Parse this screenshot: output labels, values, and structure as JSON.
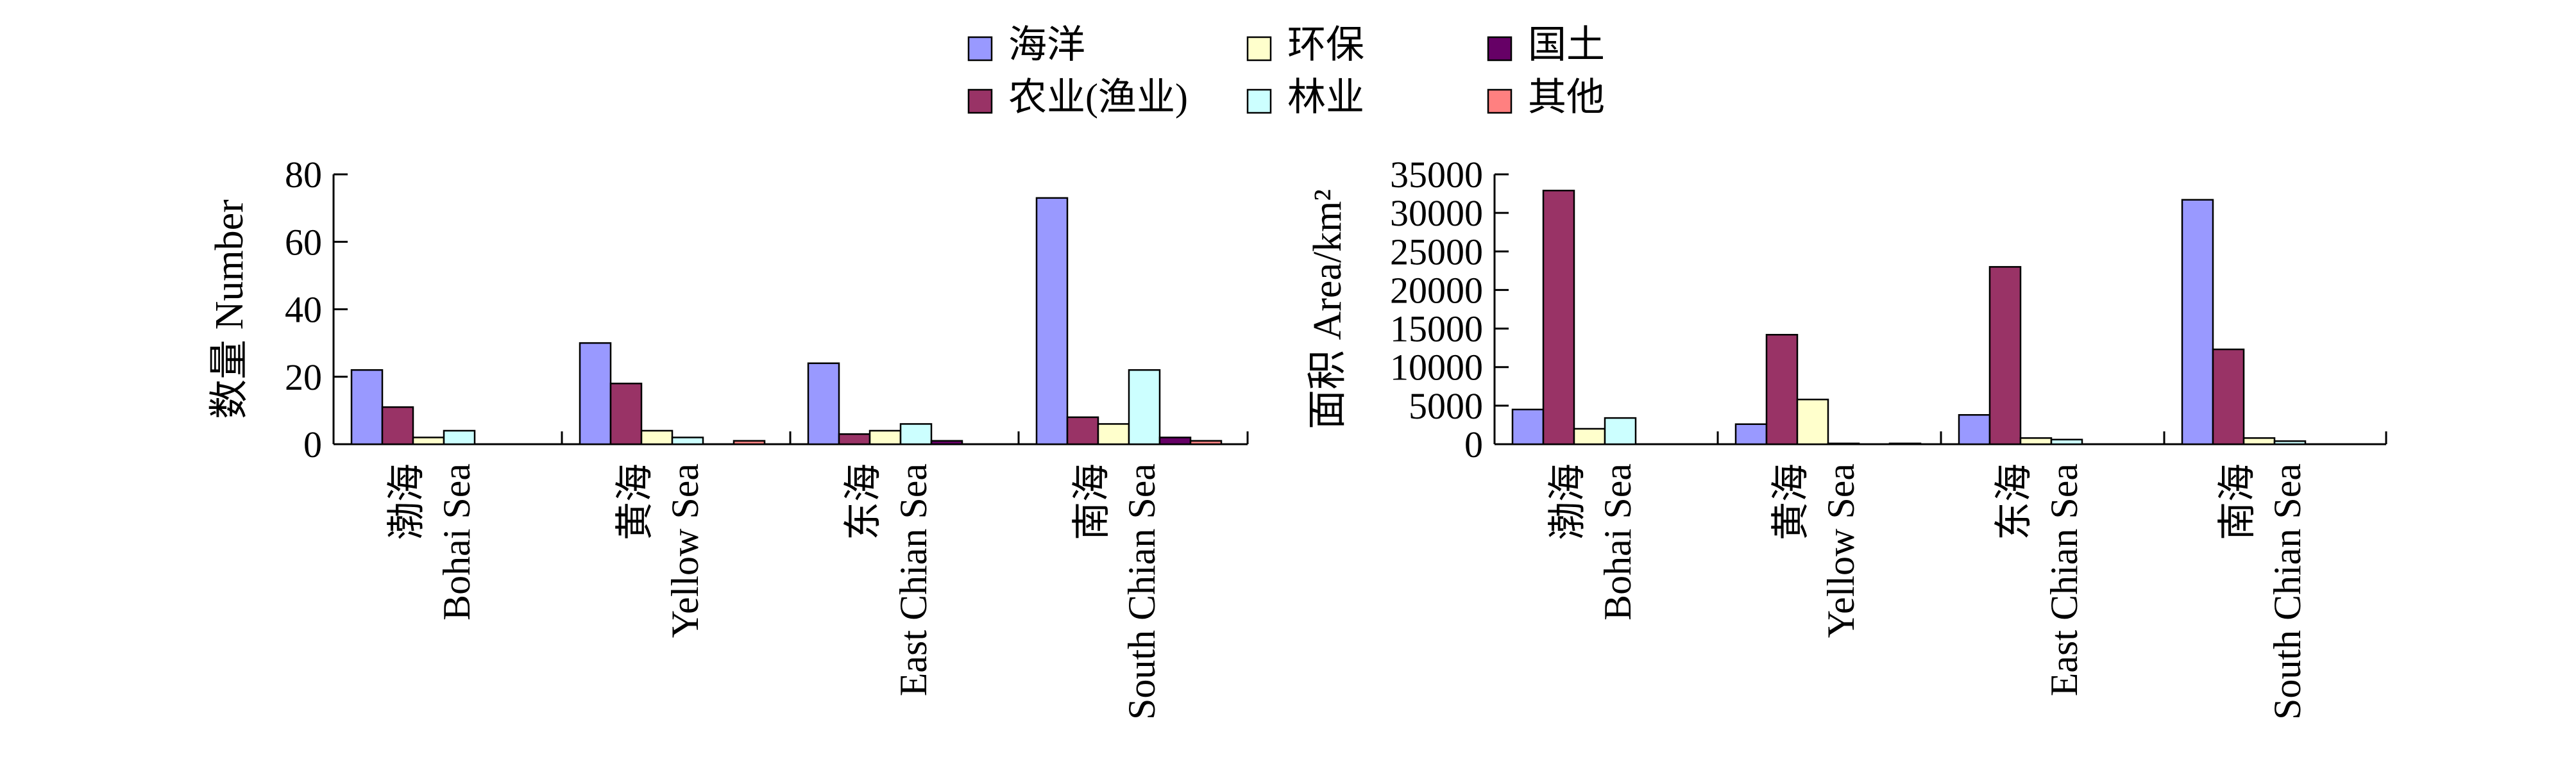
{
  "legend": {
    "entries": [
      {
        "name": "海洋",
        "color": "#9999ff"
      },
      {
        "name": "农业(渔业)",
        "color": "#993366"
      },
      {
        "name": "环保",
        "color": "#ffffcc"
      },
      {
        "name": "林业",
        "color": "#ccffff"
      },
      {
        "name": "国土",
        "color": "#660066"
      },
      {
        "name": "其他",
        "color": "#ff8080"
      }
    ]
  },
  "chart_data": [
    {
      "type": "bar",
      "ylabel": "数量 Number",
      "ylim": [
        0,
        80
      ],
      "yticks": [
        "0",
        "20",
        "40",
        "60",
        "80"
      ],
      "categories": [
        [
          "渤海",
          "Bohai Sea"
        ],
        [
          "黄海",
          "Yellow Sea"
        ],
        [
          "东海",
          "East Chian Sea"
        ],
        [
          "南海",
          "South Chian Sea"
        ]
      ],
      "series": [
        {
          "name": "海洋",
          "values": [
            22,
            30,
            24,
            73
          ]
        },
        {
          "name": "农业(渔业)",
          "values": [
            11,
            18,
            3,
            8
          ]
        },
        {
          "name": "环保",
          "values": [
            2,
            4,
            4,
            6
          ]
        },
        {
          "name": "林业",
          "values": [
            4,
            2,
            6,
            22
          ]
        },
        {
          "name": "国土",
          "values": [
            0,
            0,
            1,
            2
          ]
        },
        {
          "name": "其他",
          "values": [
            0,
            1,
            0,
            1
          ]
        }
      ]
    },
    {
      "type": "bar",
      "ylabel": "面积 Area/km²",
      "ylim": [
        0,
        35000
      ],
      "yticks": [
        "0",
        "5000",
        "10000",
        "15000",
        "20000",
        "25000",
        "30000",
        "35000"
      ],
      "categories": [
        [
          "渤海",
          "Bohai Sea"
        ],
        [
          "黄海",
          "Yellow Sea"
        ],
        [
          "东海",
          "East Chian Sea"
        ],
        [
          "南海",
          "South Chian Sea"
        ]
      ],
      "series": [
        {
          "name": "海洋",
          "values": [
            4500,
            2600,
            3800,
            31700
          ]
        },
        {
          "name": "农业(渔业)",
          "values": [
            32900,
            14200,
            23000,
            12300
          ]
        },
        {
          "name": "环保",
          "values": [
            2000,
            5800,
            800,
            800
          ]
        },
        {
          "name": "林业",
          "values": [
            3400,
            100,
            600,
            400
          ]
        },
        {
          "name": "国土",
          "values": [
            0,
            0,
            0,
            0
          ]
        },
        {
          "name": "其他",
          "values": [
            0,
            100,
            0,
            0
          ]
        }
      ]
    }
  ]
}
